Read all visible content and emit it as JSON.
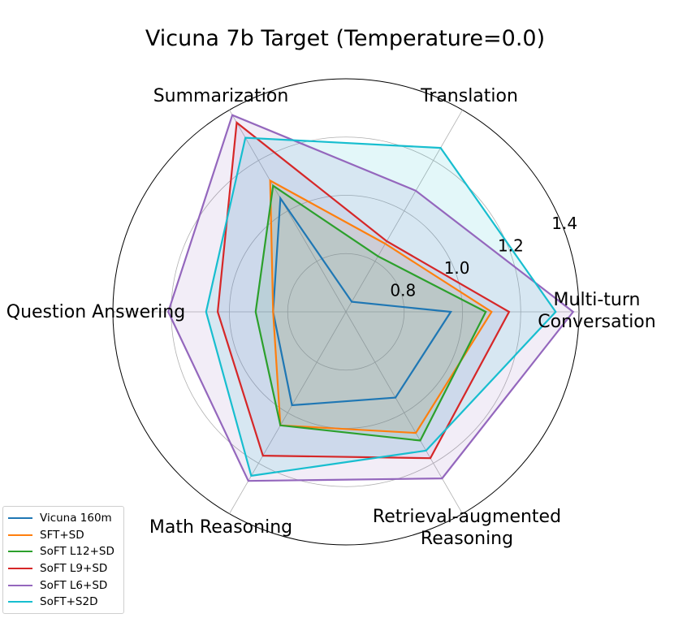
{
  "chart_data": {
    "type": "radar",
    "title": "Vicuna 7b Target (Temperature=0.0)",
    "axes": [
      [
        "Multi-turn",
        "Conversation"
      ],
      [
        "Translation"
      ],
      [
        "Summarization"
      ],
      [
        "Question Answering"
      ],
      [
        "Math Reasoning"
      ],
      [
        "Retrieval-augmented",
        "Reasoning"
      ]
    ],
    "r_ticks": [
      "0.8",
      "1.0",
      "1.2",
      "1.4"
    ],
    "r_tick_values": [
      0.8,
      1.0,
      1.2,
      1.4
    ],
    "rlim": [
      0.6,
      1.4
    ],
    "grid": true,
    "legend_position": "bottom-left",
    "series": [
      {
        "name": "Vicuna 160m",
        "color": "#1f77b4",
        "values": [
          0.96,
          0.64,
          1.05,
          0.85,
          0.97,
          0.94
        ],
        "fill": false
      },
      {
        "name": "SFT+SD",
        "color": "#ff7f0e",
        "values": [
          1.1,
          0.87,
          1.12,
          0.85,
          1.05,
          1.08
        ],
        "fill": true,
        "fill_color": "#ff7f0e"
      },
      {
        "name": "SoFT L12+SD",
        "color": "#2ca02c",
        "values": [
          1.08,
          0.82,
          1.1,
          0.91,
          1.05,
          1.11
        ],
        "fill": true,
        "fill_color": "#2ca02c"
      },
      {
        "name": "SoFT L9+SD",
        "color": "#d62728",
        "values": [
          1.16,
          0.88,
          1.35,
          1.04,
          1.17,
          1.18
        ],
        "fill": true,
        "fill_color": "#9467bd"
      },
      {
        "name": "SoFT L6+SD",
        "color": "#9467bd",
        "values": [
          1.38,
          1.08,
          1.38,
          1.21,
          1.27,
          1.26
        ],
        "fill": true,
        "fill_color": "#9467bd"
      },
      {
        "name": "SoFT+S2D",
        "color": "#17becf",
        "values": [
          1.32,
          1.25,
          1.29,
          1.08,
          1.25,
          1.15
        ],
        "fill": true,
        "fill_color": "#17becf"
      }
    ]
  }
}
